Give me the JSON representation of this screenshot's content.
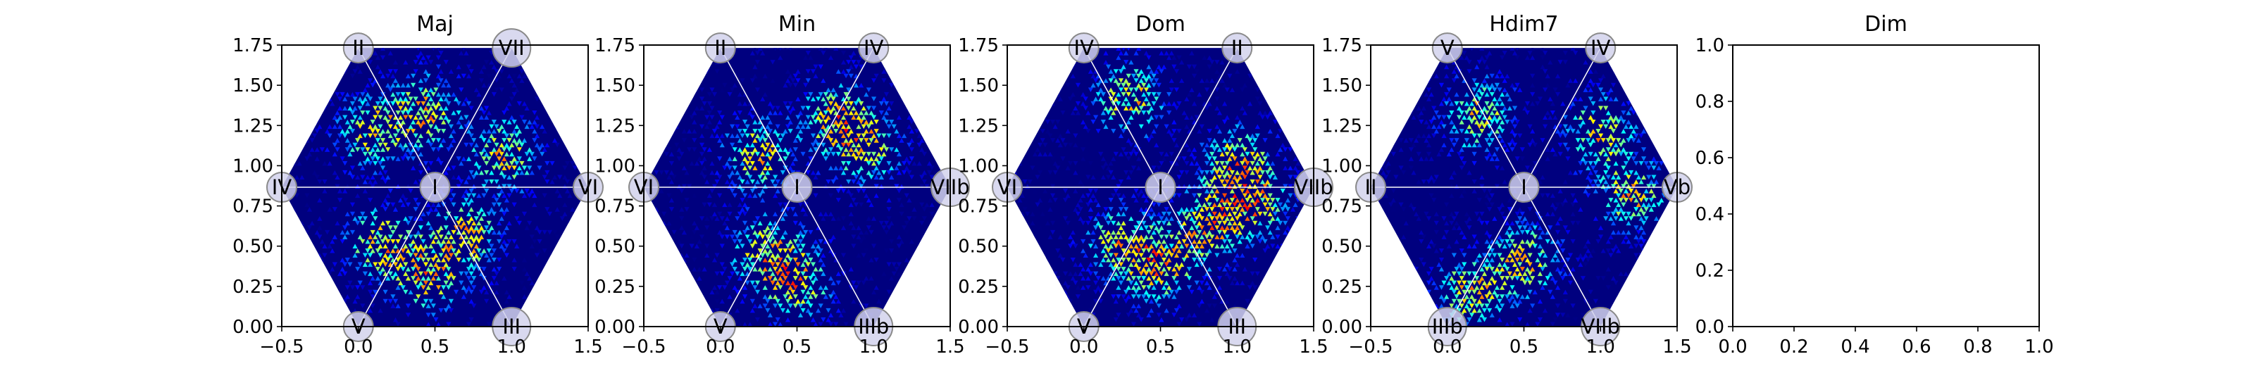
{
  "colors": {
    "background": "#00007f",
    "colormap": [
      "#00007f",
      "#0000ff",
      "#007fff",
      "#00ffff",
      "#7fff7f",
      "#ffff00",
      "#ff7f00",
      "#ff0000"
    ],
    "node_fill": "#d2d2ec",
    "node_stroke": "#8a8a8a",
    "spoke": "#ffffff"
  },
  "chart_data": [
    {
      "type": "heatmap",
      "title": "Maj",
      "xlim": [
        -0.5,
        1.5
      ],
      "ylim": [
        0.0,
        1.75
      ],
      "x_ticks": [
        "−0.5",
        "0.0",
        "0.5",
        "1.0",
        "1.5"
      ],
      "y_ticks": [
        "0.00",
        "0.25",
        "0.50",
        "0.75",
        "1.00",
        "1.25",
        "1.50",
        "1.75"
      ],
      "center_label": "I",
      "vertex_labels": [
        "VI",
        "VII",
        "II",
        "IV",
        "V",
        "III"
      ],
      "density_peaks": [
        [
          0.45,
          1.32
        ],
        [
          0.95,
          1.05
        ],
        [
          0.15,
          0.5
        ],
        [
          0.7,
          0.55
        ],
        [
          0.1,
          1.2
        ],
        [
          0.45,
          0.3
        ]
      ]
    },
    {
      "type": "heatmap",
      "title": "Min",
      "xlim": [
        -0.5,
        1.5
      ],
      "ylim": [
        0.0,
        1.75
      ],
      "x_ticks": [
        "−0.5",
        "0.0",
        "0.5",
        "1.0",
        "1.5"
      ],
      "y_ticks": [
        "0.00",
        "0.25",
        "0.50",
        "0.75",
        "1.00",
        "1.25",
        "1.50",
        "1.75"
      ],
      "center_label": "I",
      "vertex_labels": [
        "VIIb",
        "IV",
        "II",
        "VI",
        "V",
        "IIIb"
      ],
      "density_peaks": [
        [
          0.75,
          1.3
        ],
        [
          0.95,
          1.1
        ],
        [
          0.3,
          0.45
        ],
        [
          0.5,
          0.25
        ],
        [
          0.25,
          1.05
        ]
      ]
    },
    {
      "type": "heatmap",
      "title": "Dom",
      "xlim": [
        -0.5,
        1.5
      ],
      "ylim": [
        0.0,
        1.75
      ],
      "x_ticks": [
        "−0.5",
        "0.0",
        "0.5",
        "1.0",
        "1.5"
      ],
      "y_ticks": [
        "0.00",
        "0.25",
        "0.50",
        "0.75",
        "1.00",
        "1.25",
        "1.50",
        "1.75"
      ],
      "center_label": "I",
      "vertex_labels": [
        "VIIb",
        "II",
        "IV",
        "VI",
        "V",
        "III"
      ],
      "density_peaks": [
        [
          0.3,
          1.4
        ],
        [
          1.0,
          1.0
        ],
        [
          0.25,
          0.5
        ],
        [
          0.5,
          0.35
        ],
        [
          0.8,
          0.6
        ],
        [
          1.1,
          0.75
        ]
      ]
    },
    {
      "type": "heatmap",
      "title": "Hdim7",
      "xlim": [
        -0.5,
        1.5
      ],
      "ylim": [
        0.0,
        1.75
      ],
      "x_ticks": [
        "−0.5",
        "0.0",
        "0.5",
        "1.0",
        "1.5"
      ],
      "y_ticks": [
        "0.00",
        "0.25",
        "0.50",
        "0.75",
        "1.00",
        "1.25",
        "1.50",
        "1.75"
      ],
      "center_label": "I",
      "vertex_labels": [
        "Vb",
        "IV",
        "V",
        "II",
        "IIIb",
        "VIIb"
      ],
      "density_peaks": [
        [
          0.2,
          1.3
        ],
        [
          1.0,
          1.2
        ],
        [
          0.5,
          0.4
        ],
        [
          0.15,
          0.2
        ],
        [
          1.2,
          0.8
        ]
      ]
    },
    {
      "type": "heatmap",
      "title": "Dim",
      "xlim": [
        0.0,
        1.0
      ],
      "ylim": [
        0.0,
        1.0
      ],
      "x_ticks": [
        "0.0",
        "0.2",
        "0.4",
        "0.6",
        "0.8",
        "1.0"
      ],
      "y_ticks": [
        "0.0",
        "0.2",
        "0.4",
        "0.6",
        "0.8",
        "1.0"
      ],
      "center_label": "",
      "vertex_labels": [],
      "density_peaks": []
    }
  ]
}
